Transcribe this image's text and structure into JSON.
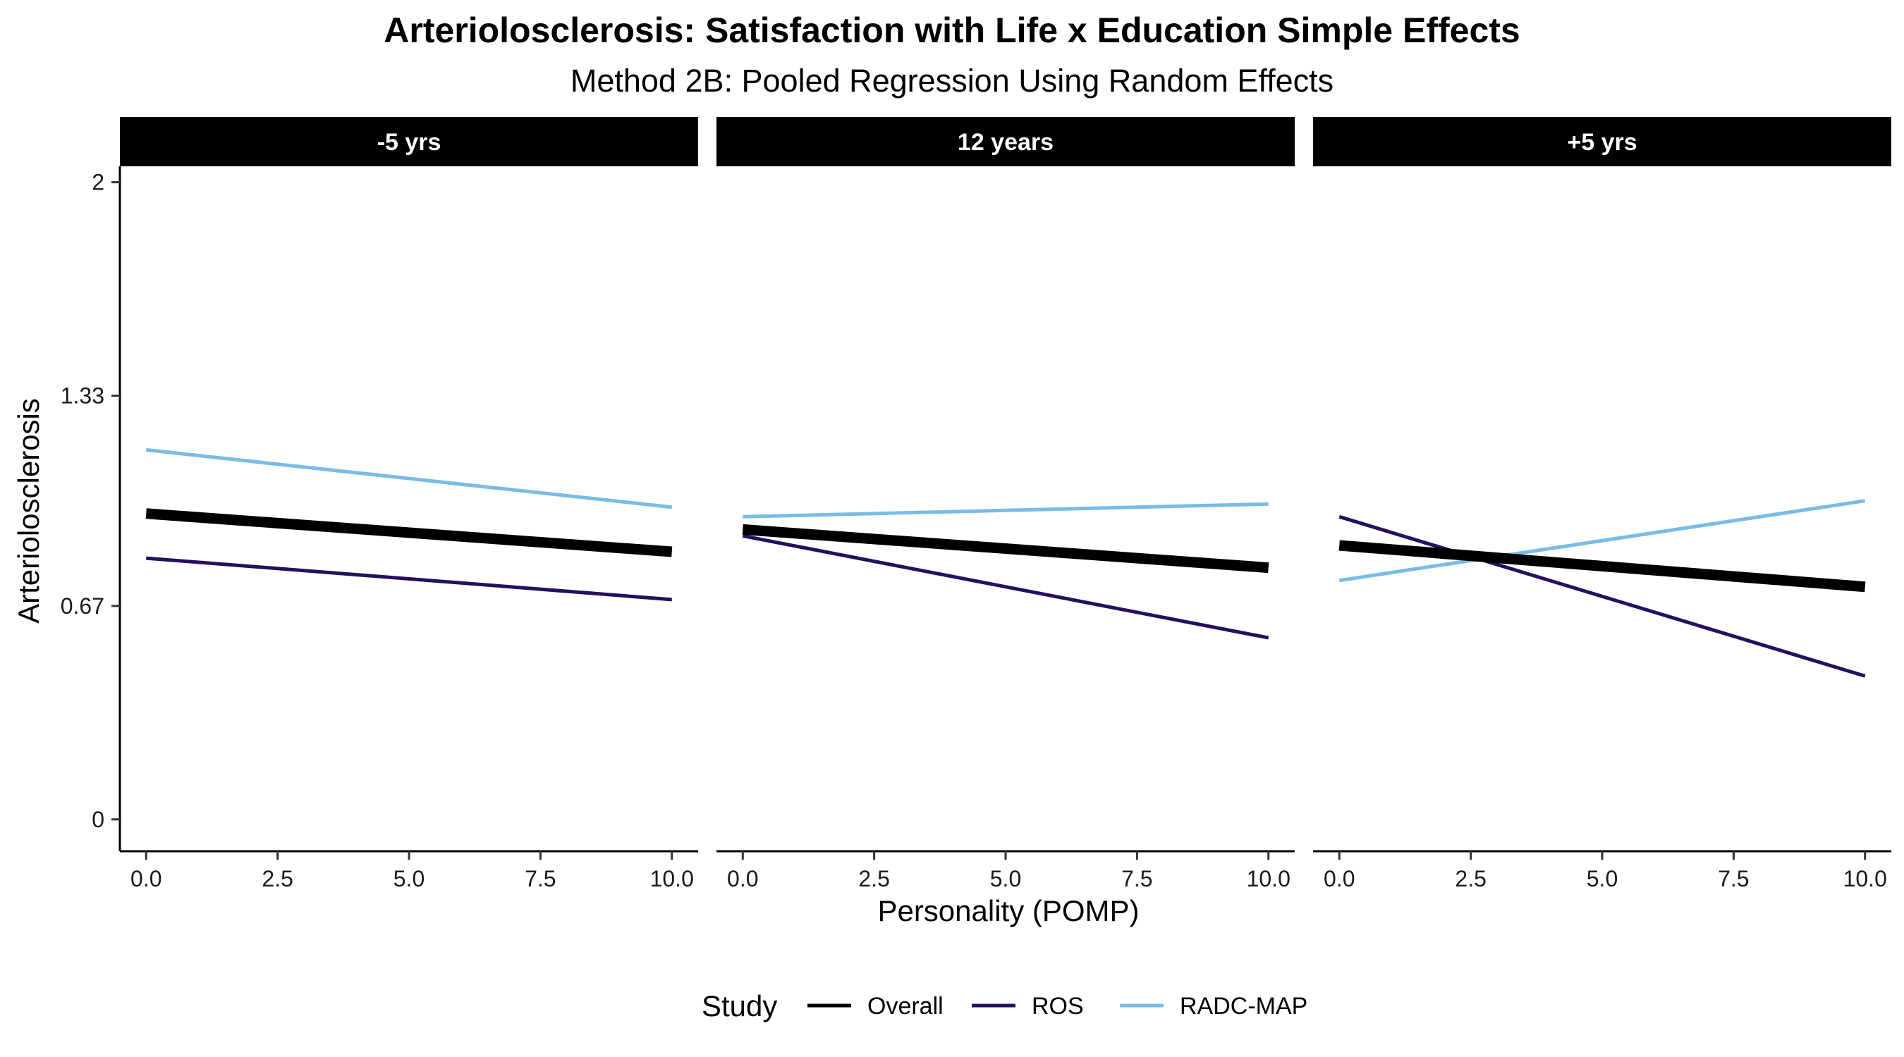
{
  "chart_data": {
    "type": "line",
    "title": "Arteriolosclerosis: Satisfaction with Life x Education Simple Effects",
    "subtitle": "Method 2B: Pooled Regression Using Random Effects",
    "xlabel": "Personality (POMP)",
    "ylabel": "Arteriolosclerosis",
    "xlim": [
      -0.5,
      10.5
    ],
    "ylim": [
      -0.1,
      2.05
    ],
    "x_ticks": [
      0,
      2.5,
      5,
      7.5,
      10
    ],
    "x_tick_labels": [
      "0.0",
      "2.5",
      "5.0",
      "7.5",
      "10.0"
    ],
    "y_ticks": [
      0,
      0.67,
      1.33,
      2
    ],
    "y_tick_labels": [
      "0",
      "0.67",
      "1.33",
      "2"
    ],
    "grid": false,
    "legend": {
      "title": "Study",
      "position": "bottom",
      "entries": [
        {
          "label": "Overall",
          "color": "#000000"
        },
        {
          "label": "ROS",
          "color": "#24105e"
        },
        {
          "label": "RADC-MAP",
          "color": "#79bce6"
        }
      ]
    },
    "panels": [
      {
        "label": "-5 yrs",
        "series": [
          {
            "name": "Overall",
            "color": "#000000",
            "x": [
              0,
              10
            ],
            "y": [
              0.96,
              0.84
            ]
          },
          {
            "name": "ROS",
            "color": "#24105e",
            "x": [
              0,
              10
            ],
            "y": [
              0.82,
              0.69
            ]
          },
          {
            "name": "RADC-MAP",
            "color": "#79bce6",
            "x": [
              0,
              10
            ],
            "y": [
              1.16,
              0.98
            ]
          }
        ]
      },
      {
        "label": "12 years",
        "series": [
          {
            "name": "Overall",
            "color": "#000000",
            "x": [
              0,
              10
            ],
            "y": [
              0.91,
              0.79
            ]
          },
          {
            "name": "ROS",
            "color": "#24105e",
            "x": [
              0,
              10
            ],
            "y": [
              0.89,
              0.57
            ]
          },
          {
            "name": "RADC-MAP",
            "color": "#79bce6",
            "x": [
              0,
              10
            ],
            "y": [
              0.95,
              0.99
            ]
          }
        ]
      },
      {
        "label": "+5 yrs",
        "series": [
          {
            "name": "Overall",
            "color": "#000000",
            "x": [
              0,
              10
            ],
            "y": [
              0.86,
              0.73
            ]
          },
          {
            "name": "ROS",
            "color": "#24105e",
            "x": [
              0,
              10
            ],
            "y": [
              0.95,
              0.45
            ]
          },
          {
            "name": "RADC-MAP",
            "color": "#79bce6",
            "x": [
              0,
              10
            ],
            "y": [
              0.75,
              1.0
            ]
          }
        ]
      }
    ]
  }
}
